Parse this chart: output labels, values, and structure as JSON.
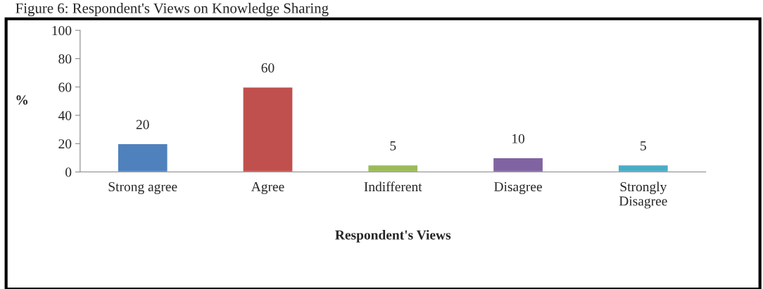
{
  "chart_data": {
    "type": "bar",
    "title": "Figure 6: Respondent's Views on Knowledge Sharing",
    "categories": [
      "Strong agree",
      "Agree",
      "Indifferent",
      "Disagree",
      "Strongly\nDisagree"
    ],
    "values": [
      20,
      60,
      5,
      10,
      5
    ],
    "colors": [
      "#4f81bd",
      "#c0504d",
      "#9bbb59",
      "#8064a2",
      "#4bacc6"
    ],
    "xlabel": "Respondent's Views",
    "ylabel": "%",
    "ylim": [
      0,
      100
    ],
    "yticks": [
      0,
      20,
      40,
      60,
      80,
      100
    ],
    "data_labels": true,
    "grid": false,
    "legend": false
  }
}
